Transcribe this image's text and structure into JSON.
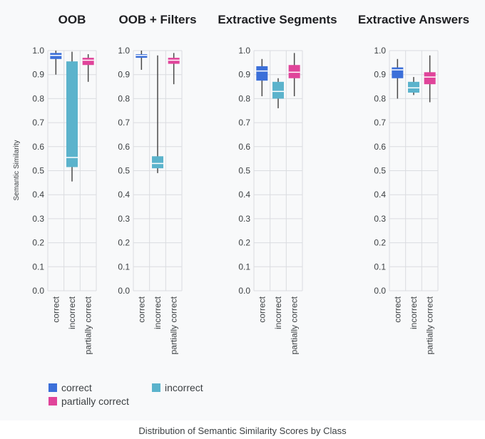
{
  "caption": "Distribution of Semantic Similarity Scores by Class",
  "colors": {
    "correct": "#3b6fd9",
    "incorrect": "#5bb3cc",
    "partially correct": "#e0449a",
    "whisker": "#4a4a4a",
    "grid": "#dadce0",
    "median_line": "#ffffff"
  },
  "legend": [
    {
      "label": "correct",
      "color": "#3b6fd9"
    },
    {
      "label": "incorrect",
      "color": "#5bb3cc"
    },
    {
      "label": "partially correct",
      "color": "#e0449a"
    }
  ],
  "chart_data": [
    {
      "type": "box",
      "title": "OOB",
      "ylabel": "Semantic Similarity",
      "ylim": [
        0,
        1.0
      ],
      "yticks": [
        "0.0",
        "0.1",
        "0.2",
        "0.3",
        "0.4",
        "0.5",
        "0.6",
        "0.7",
        "0.8",
        "0.9",
        "1.0"
      ],
      "grid": true,
      "categories": [
        "correct",
        "incorrect",
        "partially correct"
      ],
      "boxes": [
        {
          "min": 0.9,
          "q1": 0.965,
          "median": 0.98,
          "q3": 0.99,
          "max": 1.0
        },
        {
          "min": 0.455,
          "q1": 0.515,
          "median": 0.555,
          "q3": 0.955,
          "max": 0.995
        },
        {
          "min": 0.87,
          "q1": 0.94,
          "median": 0.96,
          "q3": 0.97,
          "max": 0.985
        }
      ]
    },
    {
      "type": "box",
      "title": "OOB + Filters",
      "ylabel": "",
      "ylim": [
        0,
        1.0
      ],
      "yticks": [
        "0.0",
        "0.1",
        "0.2",
        "0.3",
        "0.4",
        "0.5",
        "0.6",
        "0.7",
        "0.8",
        "0.9",
        "1.0"
      ],
      "grid": true,
      "categories": [
        "correct",
        "incorrect",
        "partially correct"
      ],
      "boxes": [
        {
          "min": 0.92,
          "q1": 0.97,
          "median": 0.98,
          "q3": 0.985,
          "max": 1.0
        },
        {
          "min": 0.49,
          "q1": 0.51,
          "median": 0.53,
          "q3": 0.56,
          "max": 0.98
        },
        {
          "min": 0.86,
          "q1": 0.945,
          "median": 0.96,
          "q3": 0.97,
          "max": 0.99
        }
      ]
    },
    {
      "type": "box",
      "title": "Extractive Segments",
      "ylabel": "",
      "ylim": [
        0,
        1.0
      ],
      "yticks": [
        "0.0",
        "0.1",
        "0.2",
        "0.3",
        "0.4",
        "0.5",
        "0.6",
        "0.7",
        "0.8",
        "0.9",
        "1.0"
      ],
      "grid": true,
      "categories": [
        "correct",
        "incorrect",
        "partially correct"
      ],
      "boxes": [
        {
          "min": 0.81,
          "q1": 0.875,
          "median": 0.915,
          "q3": 0.935,
          "max": 0.965
        },
        {
          "min": 0.76,
          "q1": 0.8,
          "median": 0.83,
          "q3": 0.87,
          "max": 0.885
        },
        {
          "min": 0.81,
          "q1": 0.885,
          "median": 0.91,
          "q3": 0.94,
          "max": 0.99
        }
      ]
    },
    {
      "type": "box",
      "title": "Extractive Answers",
      "ylabel": "",
      "ylim": [
        0,
        1.0
      ],
      "yticks": [
        "0.0",
        "0.1",
        "0.2",
        "0.3",
        "0.4",
        "0.5",
        "0.6",
        "0.7",
        "0.8",
        "0.9",
        "1.0"
      ],
      "grid": true,
      "categories": [
        "correct",
        "incorrect",
        "partially correct"
      ],
      "boxes": [
        {
          "min": 0.8,
          "q1": 0.885,
          "median": 0.92,
          "q3": 0.93,
          "max": 0.965
        },
        {
          "min": 0.815,
          "q1": 0.825,
          "median": 0.845,
          "q3": 0.87,
          "max": 0.89
        },
        {
          "min": 0.785,
          "q1": 0.86,
          "median": 0.89,
          "q3": 0.91,
          "max": 0.98
        }
      ]
    }
  ]
}
